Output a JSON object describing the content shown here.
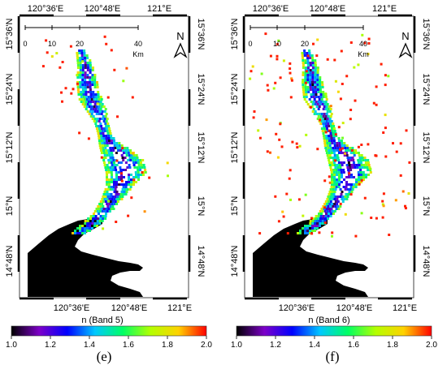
{
  "panels": [
    {
      "id": "e",
      "caption": "(e)",
      "colorbar_label": "n (Band 5)",
      "water_color": "#000000",
      "scale_bar": {
        "ticks": [
          "0",
          "10",
          "20",
          "40"
        ],
        "unit": "Km"
      },
      "north_label": "N"
    },
    {
      "id": "f",
      "caption": "(f)",
      "colorbar_label": "n (Band 6)",
      "water_color": "#000000",
      "scale_bar": {
        "ticks": [
          "0",
          "10",
          "20",
          "40"
        ],
        "unit": "Km"
      },
      "north_label": "N"
    }
  ],
  "axes": {
    "top_labels": [
      "120°36'E",
      "120°48'E",
      "121°E"
    ],
    "bottom_labels": [
      "120°36'E",
      "120°48'E",
      "121°E"
    ],
    "left_labels": [
      "15°36'N",
      "15°24'N",
      "15°12'N",
      "15°N",
      "14°48'N"
    ],
    "right_labels": [
      "15°36'N",
      "15°24'N",
      "15°12'N",
      "15°N",
      "14°48'N"
    ]
  },
  "colorbar": {
    "ticks": [
      "1.0",
      "1.2",
      "1.4",
      "1.6",
      "1.8",
      "2.0"
    ],
    "min": 1.0,
    "max": 2.0,
    "stops": [
      "#000000",
      "#7d00c8",
      "#0000ff",
      "#00c8ff",
      "#00ff64",
      "#b4ff00",
      "#ffd200",
      "#ff0000"
    ]
  }
}
